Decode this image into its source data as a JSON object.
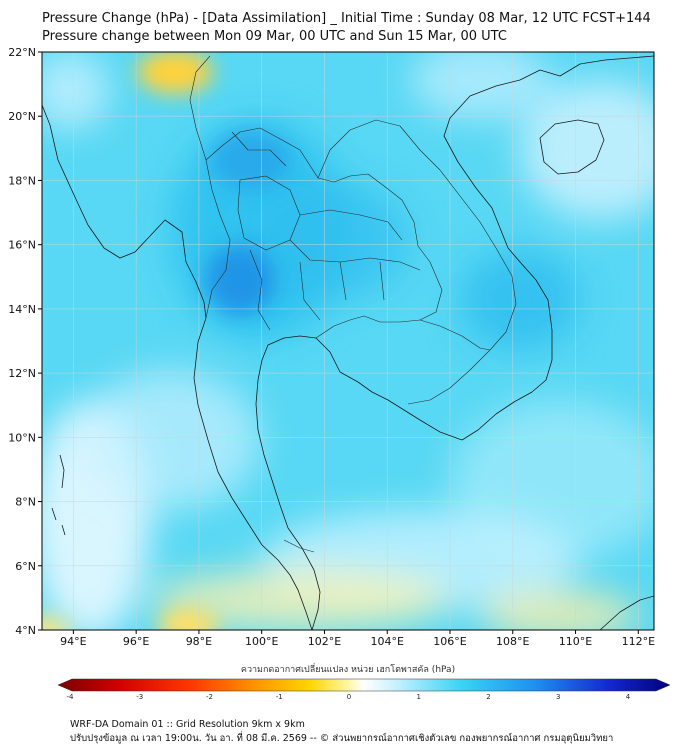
{
  "title": {
    "line1": "Pressure Change (hPa) - [Data Assimilation] _ Initial Time : Sunday 08 Mar, 12 UTC FCST+144",
    "line2": "Pressure change between Mon 09 Mar, 00 UTC and Sun 15 Mar, 00 UTC"
  },
  "map": {
    "lat_labels": [
      "22°N",
      "20°N",
      "18°N",
      "16°N",
      "14°N",
      "12°N",
      "10°N",
      "8°N",
      "6°N",
      "4°N"
    ],
    "lon_labels": [
      "94°E",
      "96°E",
      "98°E",
      "100°E",
      "102°E",
      "104°E",
      "106°E",
      "108°E",
      "110°E",
      "112°E"
    ],
    "lat_range": [
      4,
      22
    ],
    "lon_range": [
      93,
      112.5
    ],
    "grid": true
  },
  "colorbar": {
    "label": "ความกดอากาศเปลี่ยนแปลง หน่วย เฮกโตพาสคัล (hPa)",
    "ticks": [
      "-4",
      "-3",
      "-2",
      "-1",
      "0",
      "1",
      "2",
      "3",
      "4"
    ],
    "range": [
      -4,
      4
    ],
    "colors": [
      "#7a0000",
      "#d10000",
      "#ff3a00",
      "#ff9a00",
      "#ffd400",
      "#fff59a",
      "#ffffff",
      "#c8f2ff",
      "#38d4f5",
      "#1e8ff0",
      "#1428d0",
      "#00007a"
    ]
  },
  "footer": {
    "line1": "WRF-DA Domain 01 :: Grid Resolution 9km x 9km",
    "line2": "ปรับปรุงข้อมูล ณ เวลา 19:00น. วัน อา. ที่ 08 มี.ค. 2569 -- © ส่วนพยากรณ์อากาศเชิงตัวเลข กองพยากรณ์อากาศ กรมอุตุนิยมวิทยา"
  }
}
